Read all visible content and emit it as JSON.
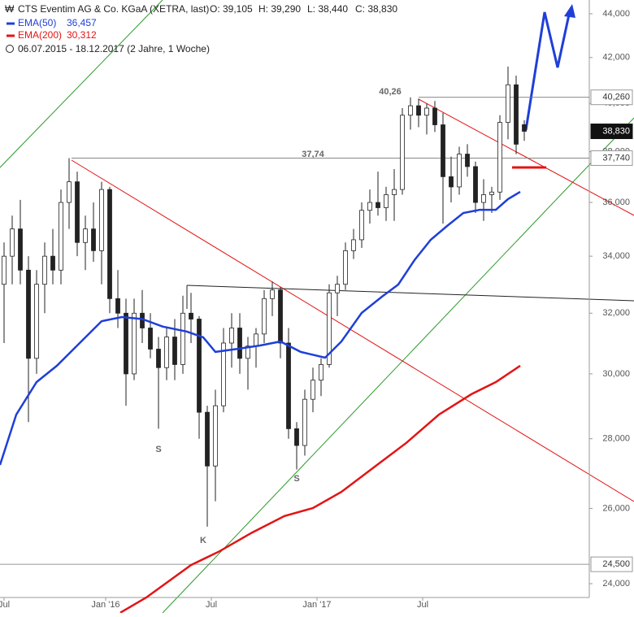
{
  "chart_data": {
    "type": "candlestick",
    "title": "CTS Eventim AG & Co. KGaA (XETRA, last)",
    "ohlc_labels": [
      "O: 39,105",
      "H: 39,290",
      "L: 38,440",
      "C: 38,830"
    ],
    "date_range": "06.07.2015 - 18.12.2017  (2 Jahre, 1 Woche)",
    "log_scale": true,
    "xlim": [
      -0.5,
      72
    ],
    "xticks": [
      {
        "value": 0,
        "label": "Jul"
      },
      {
        "value": 12.5,
        "label": "Jan '16"
      },
      {
        "value": 25.5,
        "label": "Jul"
      },
      {
        "value": 38.5,
        "label": "Jan '17"
      },
      {
        "value": 51.5,
        "label": "Jul"
      }
    ],
    "ylim": [
      23650,
      44650
    ],
    "yticks": [
      {
        "value": 24000,
        "label": "24,000"
      },
      {
        "value": 26000,
        "label": "26,000"
      },
      {
        "value": 28000,
        "label": "28,000"
      },
      {
        "value": 30000,
        "label": "30,000"
      },
      {
        "value": 32000,
        "label": "32,000"
      },
      {
        "value": 34000,
        "label": "34,000"
      },
      {
        "value": 36000,
        "label": "36,000"
      },
      {
        "value": 38000,
        "label": "38,000"
      },
      {
        "value": 40000,
        "label": "40,000"
      },
      {
        "value": 42000,
        "label": "42,000"
      },
      {
        "value": 44000,
        "label": "44,000"
      }
    ],
    "candles": {
      "color": "#222222",
      "open": [
        33000,
        34000,
        35000,
        33500,
        30500,
        33000,
        34000,
        33500,
        36000,
        36800,
        34500,
        35000,
        34200,
        36500,
        32500,
        32000,
        30000,
        32000,
        31500,
        30800,
        30200,
        31200,
        30300,
        32000,
        31800,
        28800,
        27200,
        29000,
        31000,
        31500,
        30500,
        30900,
        31300,
        32500,
        32800,
        31000,
        28300,
        27800,
        29200,
        29800,
        30300,
        32700,
        33000,
        34200,
        34600,
        35700,
        36000,
        35800,
        36300,
        36500,
        39500,
        39900,
        39500,
        39800,
        39100,
        37000,
        36600,
        37900,
        37400,
        36000,
        36300,
        36400,
        39200,
        40800,
        39105
      ],
      "high": [
        34500,
        35500,
        36100,
        34000,
        33500,
        34500,
        35000,
        36500,
        37740,
        37200,
        35500,
        36000,
        36800,
        36600,
        33500,
        32500,
        32500,
        32800,
        32000,
        31200,
        31500,
        31800,
        32600,
        32700,
        31900,
        29000,
        29500,
        31500,
        32000,
        32000,
        31200,
        31500,
        32800,
        33100,
        32900,
        31500,
        28500,
        29500,
        30200,
        30500,
        33000,
        33300,
        34500,
        35000,
        36000,
        36500,
        37200,
        36600,
        37300,
        39800,
        40260,
        40200,
        40000,
        40100,
        39600,
        37800,
        38200,
        38300,
        37600,
        36900,
        36600,
        39500,
        41600,
        41200,
        39290
      ],
      "low": [
        31000,
        33000,
        33000,
        28500,
        30000,
        32000,
        33000,
        33000,
        35000,
        34000,
        33500,
        33800,
        33000,
        32000,
        31500,
        29000,
        29800,
        31000,
        30500,
        28300,
        29800,
        29800,
        30000,
        31000,
        28000,
        25500,
        26200,
        28800,
        30200,
        30000,
        29500,
        30200,
        31000,
        31900,
        30500,
        28000,
        27100,
        27500,
        28800,
        29300,
        30200,
        31900,
        32800,
        33900,
        34300,
        35200,
        35500,
        35300,
        35300,
        36300,
        38900,
        39000,
        38700,
        38800,
        35200,
        36000,
        36300,
        37000,
        35600,
        35300,
        35600,
        36100,
        38500,
        37900,
        38440
      ],
      "close": [
        34000,
        35000,
        33500,
        30500,
        33000,
        34000,
        33500,
        36000,
        36800,
        34500,
        35000,
        34200,
        36500,
        32500,
        32000,
        30000,
        32000,
        31500,
        30800,
        30200,
        31200,
        30300,
        32000,
        31800,
        28800,
        27200,
        29000,
        31000,
        31500,
        30500,
        30900,
        31300,
        32500,
        32800,
        31000,
        28300,
        27800,
        29200,
        29800,
        30300,
        32700,
        33000,
        34200,
        34600,
        35700,
        36000,
        35800,
        36300,
        36500,
        39500,
        39900,
        39500,
        39800,
        39100,
        37000,
        36600,
        37900,
        37400,
        36000,
        36300,
        36400,
        39200,
        40800,
        38300,
        38830
      ]
    },
    "series": [
      {
        "name": "EMA(50)",
        "legend_value": "36,457",
        "color": "#1f3fd8",
        "x": [
          -0.5,
          1.5,
          4,
          6.5,
          9,
          12,
          14.5,
          17,
          19.5,
          22.5,
          24.5,
          26,
          28.5,
          31.5,
          34,
          36.5,
          39.5,
          41.5,
          44,
          46.5,
          48.5,
          50.5,
          52.5,
          54.5,
          56.5,
          58.5,
          60.5,
          62,
          63.5
        ],
        "values": [
          27230,
          28730,
          29740,
          30260,
          30920,
          31730,
          31870,
          31800,
          31550,
          31380,
          31190,
          30710,
          30800,
          30920,
          31050,
          30710,
          30520,
          31050,
          32010,
          32570,
          32990,
          33860,
          34600,
          35110,
          35600,
          35720,
          35720,
          36130,
          36410
        ]
      },
      {
        "name": "EMA(200)",
        "legend_value": "30,312",
        "color": "#e31414",
        "x": [
          14.3,
          17.5,
          23,
          26.5,
          30.5,
          34.5,
          38,
          41.5,
          45.5,
          49.5,
          53.5,
          57.5,
          60.5,
          63.5
        ],
        "values": [
          23270,
          23650,
          24480,
          24840,
          25340,
          25790,
          26010,
          26460,
          27160,
          27880,
          28730,
          29360,
          29740,
          30260
        ]
      }
    ],
    "levels": [
      {
        "value": 40260,
        "label": "40,260"
      },
      {
        "value": 38830,
        "label": "38,830"
      },
      {
        "value": 37740,
        "label": "37,740"
      },
      {
        "value": 24500,
        "label": "24,500"
      }
    ],
    "annotations": [
      "40,26",
      "37,74",
      "S",
      "S",
      "K"
    ]
  }
}
